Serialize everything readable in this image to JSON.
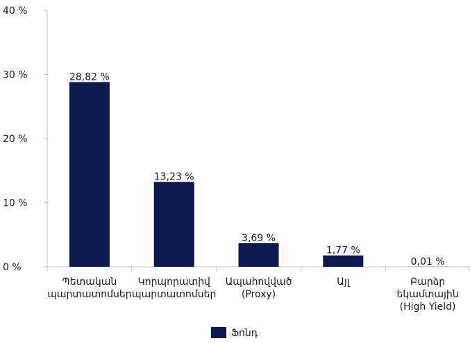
{
  "chart_data": {
    "type": "bar",
    "categories": [
      [
        "Պետական",
        "պարտատոմսեր"
      ],
      [
        "Կորպորատիվ",
        "պարտատոմսեր"
      ],
      [
        "Ապահովված",
        "(Proxy)"
      ],
      [
        "Այլ"
      ],
      [
        "Բարձր",
        "եկամտային",
        "(High Yield)"
      ]
    ],
    "series": [
      {
        "name": "Ֆոնդ",
        "values": [
          28.82,
          13.23,
          3.69,
          1.77,
          0.01
        ],
        "labels": [
          "28,82 %",
          "13,23 %",
          "3,69 %",
          "1,77 %",
          "0,01 %"
        ]
      }
    ],
    "ylim": [
      0,
      40
    ],
    "yticks": [
      {
        "value": 0,
        "label": "0 %"
      },
      {
        "value": 10,
        "label": "10 %"
      },
      {
        "value": 20,
        "label": "20 %"
      },
      {
        "value": 30,
        "label": "30 %"
      },
      {
        "value": 40,
        "label": "40 %"
      }
    ],
    "grid": false,
    "legend": "bottom-center",
    "colors": {
      "bar": "#0c1a4f",
      "axis": "#bfbfbf",
      "text": "#1a1a1a"
    }
  }
}
